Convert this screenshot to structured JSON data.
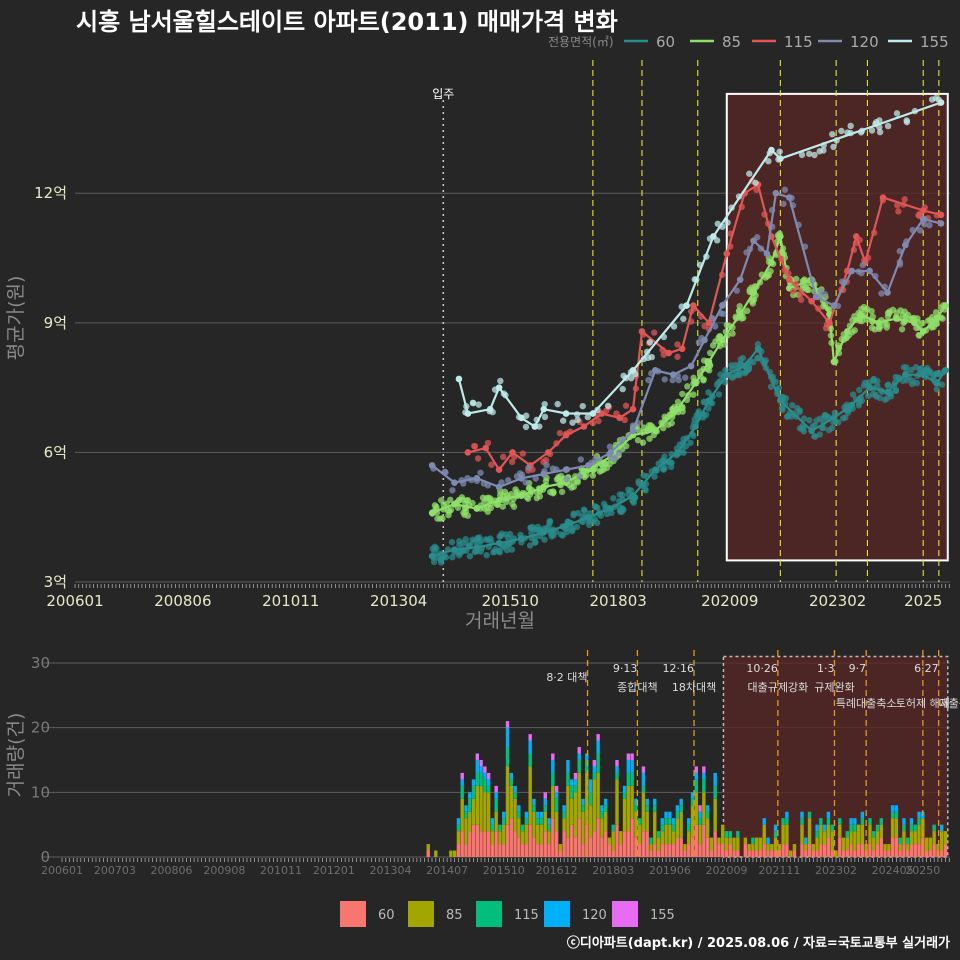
{
  "chart_data": [
    {
      "type": "line",
      "title": "시흥 남서울힐스테이트 아파트(2011) 매매가격 변화",
      "xlabel": "거래년월",
      "ylabel": "평균가(원)",
      "x_ticks": [
        "200601",
        "200806",
        "201011",
        "201304",
        "201510",
        "201803",
        "202009",
        "202302",
        "2025"
      ],
      "y_ticks": [
        "3억",
        "6억",
        "9억",
        "12억"
      ],
      "ylim": [
        3,
        15.2
      ],
      "legend_title": "전용면적(㎡)",
      "move_in_label": "입주",
      "move_in": 2014.25,
      "policy_lines": [
        2017.6,
        2018.7,
        2019.95,
        2021.8,
        2023.05,
        2023.75,
        2025.0,
        2025.35
      ],
      "highlight": {
        "start": 2020.6,
        "end": 2025.55,
        "ymin": 3.5,
        "ymax": 14.3
      },
      "series": [
        {
          "name": "60",
          "color": "#2A8C8C",
          "points": [
            [
              2014.0,
              3.6
            ],
            [
              2014.5,
              3.75
            ],
            [
              2015.0,
              3.8
            ],
            [
              2015.5,
              3.9
            ],
            [
              2016.0,
              4.0
            ],
            [
              2016.5,
              4.15
            ],
            [
              2017.0,
              4.3
            ],
            [
              2017.5,
              4.5
            ],
            [
              2018.0,
              4.7
            ],
            [
              2018.5,
              5.0
            ],
            [
              2019.0,
              5.6
            ],
            [
              2019.5,
              6.0
            ],
            [
              2019.9,
              6.6
            ],
            [
              2020.2,
              7.2
            ],
            [
              2020.6,
              7.8
            ],
            [
              2021.0,
              8.0
            ],
            [
              2021.3,
              8.4
            ],
            [
              2021.8,
              7.2
            ],
            [
              2022.5,
              6.5
            ],
            [
              2023.0,
              6.8
            ],
            [
              2023.4,
              7.1
            ],
            [
              2023.8,
              7.5
            ],
            [
              2024.2,
              7.4
            ],
            [
              2024.6,
              7.8
            ],
            [
              2025.0,
              7.8
            ],
            [
              2025.3,
              7.6
            ],
            [
              2025.5,
              7.9
            ]
          ]
        },
        {
          "name": "85",
          "color": "#8FE06A",
          "points": [
            [
              2014.0,
              4.6
            ],
            [
              2014.5,
              4.8
            ],
            [
              2015.0,
              4.7
            ],
            [
              2015.5,
              4.9
            ],
            [
              2016.0,
              5.0
            ],
            [
              2016.5,
              5.2
            ],
            [
              2017.0,
              5.3
            ],
            [
              2017.5,
              5.6
            ],
            [
              2018.0,
              5.9
            ],
            [
              2018.5,
              6.4
            ],
            [
              2019.0,
              6.5
            ],
            [
              2019.5,
              7.0
            ],
            [
              2019.9,
              7.6
            ],
            [
              2020.2,
              8.1
            ],
            [
              2020.5,
              8.6
            ],
            [
              2020.9,
              9.2
            ],
            [
              2021.2,
              9.7
            ],
            [
              2021.6,
              10.4
            ],
            [
              2021.8,
              11.0
            ],
            [
              2022.0,
              9.8
            ],
            [
              2022.5,
              10.0
            ],
            [
              2022.9,
              9.2
            ],
            [
              2023.0,
              8.1
            ],
            [
              2023.3,
              8.8
            ],
            [
              2023.6,
              9.2
            ],
            [
              2024.0,
              9.0
            ],
            [
              2024.4,
              9.1
            ],
            [
              2024.8,
              9.0
            ],
            [
              2025.0,
              8.8
            ],
            [
              2025.3,
              9.1
            ],
            [
              2025.5,
              9.4
            ]
          ]
        },
        {
          "name": "115",
          "color": "#E05555",
          "points": [
            [
              2014.8,
              6.0
            ],
            [
              2015.2,
              6.1
            ],
            [
              2015.5,
              5.6
            ],
            [
              2015.8,
              6.0
            ],
            [
              2016.2,
              5.7
            ],
            [
              2016.6,
              6.0
            ],
            [
              2017.0,
              6.4
            ],
            [
              2017.4,
              6.6
            ],
            [
              2017.8,
              6.9
            ],
            [
              2018.2,
              6.8
            ],
            [
              2018.5,
              7.0
            ],
            [
              2018.7,
              8.8
            ],
            [
              2019.3,
              8.3
            ],
            [
              2019.6,
              8.4
            ],
            [
              2019.85,
              9.4
            ],
            [
              2020.2,
              9.0
            ],
            [
              2020.6,
              10.6
            ],
            [
              2021.0,
              12.0
            ],
            [
              2021.3,
              12.2
            ],
            [
              2021.6,
              11.0
            ],
            [
              2022.0,
              10.0
            ],
            [
              2022.5,
              9.5
            ],
            [
              2022.9,
              9.0
            ],
            [
              2023.3,
              10.2
            ],
            [
              2023.5,
              11.0
            ],
            [
              2023.7,
              10.4
            ],
            [
              2024.1,
              11.9
            ],
            [
              2025.0,
              11.6
            ],
            [
              2025.4,
              11.5
            ]
          ]
        },
        {
          "name": "120",
          "color": "#7E8AB0",
          "points": [
            [
              2014.0,
              5.7
            ],
            [
              2014.5,
              5.3
            ],
            [
              2015.0,
              5.4
            ],
            [
              2015.5,
              5.2
            ],
            [
              2016.0,
              5.4
            ],
            [
              2016.5,
              5.5
            ],
            [
              2017.0,
              5.6
            ],
            [
              2017.5,
              5.7
            ],
            [
              2018.0,
              6.0
            ],
            [
              2018.5,
              6.5
            ],
            [
              2019.0,
              7.9
            ],
            [
              2019.4,
              7.8
            ],
            [
              2019.8,
              8.0
            ],
            [
              2020.1,
              8.6
            ],
            [
              2020.5,
              9.4
            ],
            [
              2020.9,
              10.0
            ],
            [
              2021.2,
              10.9
            ],
            [
              2021.5,
              10.6
            ],
            [
              2021.7,
              12.0
            ],
            [
              2022.0,
              11.9
            ],
            [
              2022.6,
              9.6
            ],
            [
              2023.0,
              9.4
            ],
            [
              2023.4,
              10.2
            ],
            [
              2023.8,
              10.2
            ],
            [
              2024.2,
              9.7
            ],
            [
              2024.6,
              10.8
            ],
            [
              2025.0,
              11.4
            ],
            [
              2025.4,
              11.3
            ]
          ]
        },
        {
          "name": "155",
          "color": "#BFEAEA",
          "points": [
            [
              2014.6,
              7.7
            ],
            [
              2014.8,
              6.9
            ],
            [
              2015.3,
              7.0
            ],
            [
              2015.5,
              7.5
            ],
            [
              2016.0,
              6.8
            ],
            [
              2016.3,
              6.6
            ],
            [
              2016.5,
              7.0
            ],
            [
              2017.0,
              6.9
            ],
            [
              2017.6,
              6.9
            ],
            [
              2018.5,
              7.9
            ],
            [
              2019.7,
              9.4
            ],
            [
              2020.3,
              11.0
            ],
            [
              2021.6,
              13.0
            ],
            [
              2021.8,
              12.8
            ],
            [
              2025.4,
              14.1
            ]
          ]
        }
      ]
    },
    {
      "type": "bar",
      "stacked": true,
      "ylabel": "거래량(건)",
      "x_ticks": [
        "200601",
        "200703",
        "200806",
        "200908",
        "201011",
        "201201",
        "201304",
        "201407",
        "201510",
        "201612",
        "201803",
        "201906",
        "202009",
        "202111",
        "202302",
        "202405",
        "20250"
      ],
      "y_ticks": [
        0,
        10,
        20,
        30
      ],
      "ylim": [
        0,
        32
      ],
      "series_names": [
        "60",
        "85",
        "115",
        "120",
        "155"
      ],
      "colors": [
        "#F8766D",
        "#A3A500",
        "#00BF7D",
        "#00B0F6",
        "#E76BF3"
      ],
      "policies": [
        {
          "date": "8·2 대책",
          "label": "",
          "x": 2017.6
        },
        {
          "date": "9·13",
          "label": "종합대책",
          "x": 2018.7
        },
        {
          "date": "12·16",
          "label": "18차대책",
          "x": 2019.95
        },
        {
          "date": "10·26",
          "label": "대출규제강화",
          "x": 2021.8
        },
        {
          "date": "1·3",
          "label": "규제완화",
          "x": 2023.05
        },
        {
          "date": "9·7",
          "label": "특례대출축소",
          "x": 2023.75
        },
        {
          "date": "",
          "label": "토허제 해제",
          "x": 2025.0
        },
        {
          "date": "6·27",
          "label": "대출규",
          "x": 2025.35
        }
      ]
    }
  ],
  "credit": "ⓒ디아파트(dapt.kr) / 2025.08.06 / 자료=국토교통부 실거래가"
}
